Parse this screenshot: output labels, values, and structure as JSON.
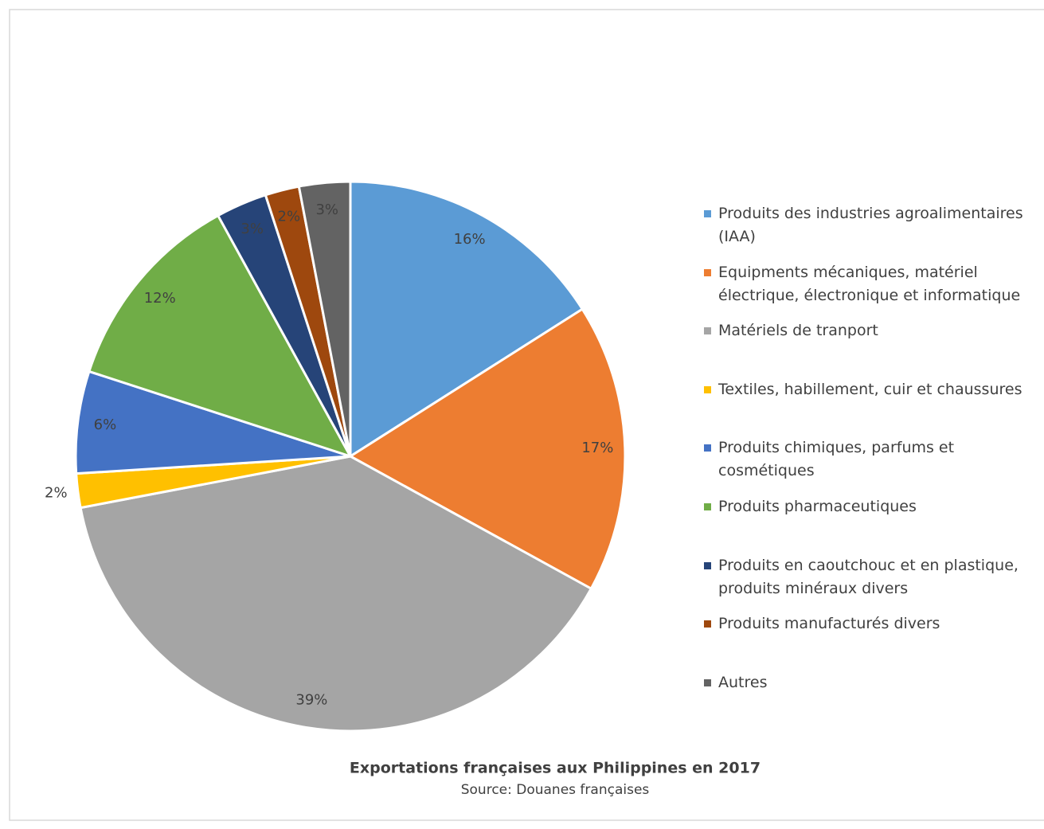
{
  "chart_data": {
    "type": "pie",
    "title": "Exportations françaises aux Philippines en 2017",
    "subtitle": "Source: Douanes françaises",
    "categories": [
      "Produits des industries agroalimentaires (IAA)",
      "Equipments mécaniques, matériel électrique, électronique et informatique",
      "Matériels de tranport",
      "Textiles, habillement, cuir et chaussures",
      "Produits chimiques, parfums et cosmétiques",
      "Produits pharmaceutiques",
      "Produits en caoutchouc et en plastique, produits minéraux divers",
      "Produits manufacturés divers",
      "Autres"
    ],
    "values": [
      16,
      17,
      39,
      2,
      6,
      12,
      3,
      2,
      3
    ],
    "value_labels": [
      "16%",
      "17%",
      "39%",
      "2%",
      "6%",
      "12%",
      "3%",
      "2%",
      "3%"
    ],
    "colors": [
      "#5b9bd5",
      "#ed7d31",
      "#a5a5a5",
      "#ffc000",
      "#4472c4",
      "#70ad47",
      "#264478",
      "#9e480e",
      "#636363"
    ],
    "legend": "right"
  }
}
